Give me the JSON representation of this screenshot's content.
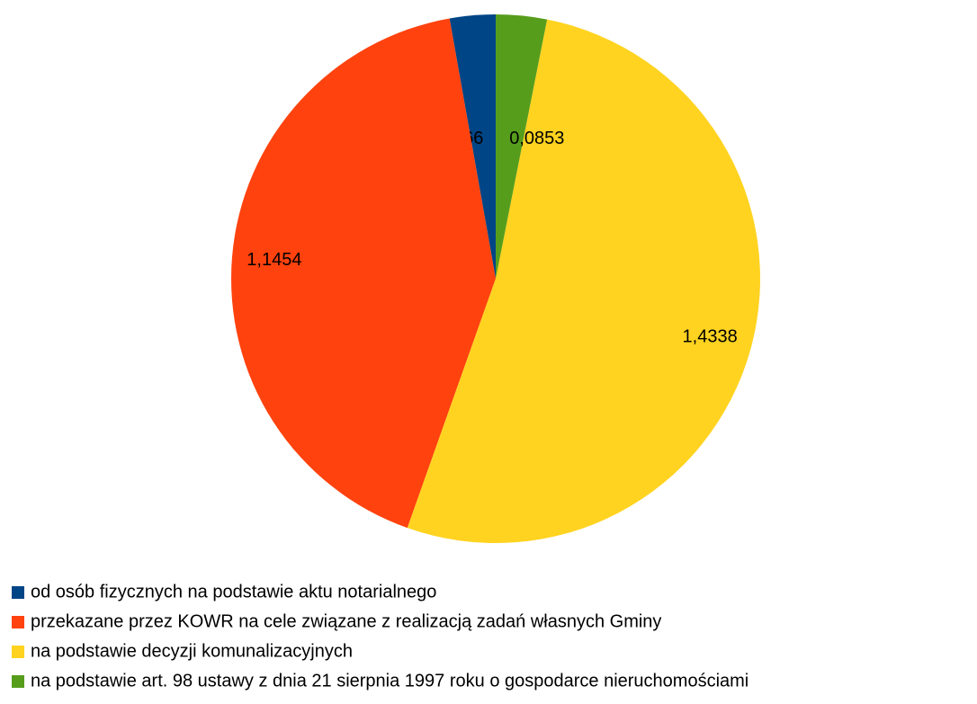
{
  "chart_data": {
    "type": "pie",
    "categories": [
      "od osób fizycznych na podstawie aktu notarialnego",
      "przekazane przez KOWR na cele związane z realizacją zadań własnych Gminy",
      "na  podstawie decyzji komunalizacyjnych",
      "na podstawie art. 98  ustawy z dnia 21 sierpnia 1997 roku o gospodarce nieruchomościami"
    ],
    "values": [
      0.0766,
      1.1454,
      1.4338,
      0.0853
    ],
    "value_labels": [
      "0,0766",
      "1,1454",
      "1,4338",
      "0,0853"
    ],
    "colors": [
      "#004586",
      "#ff420e",
      "#ffd320",
      "#579d1c"
    ],
    "legend": "bottom-left"
  }
}
